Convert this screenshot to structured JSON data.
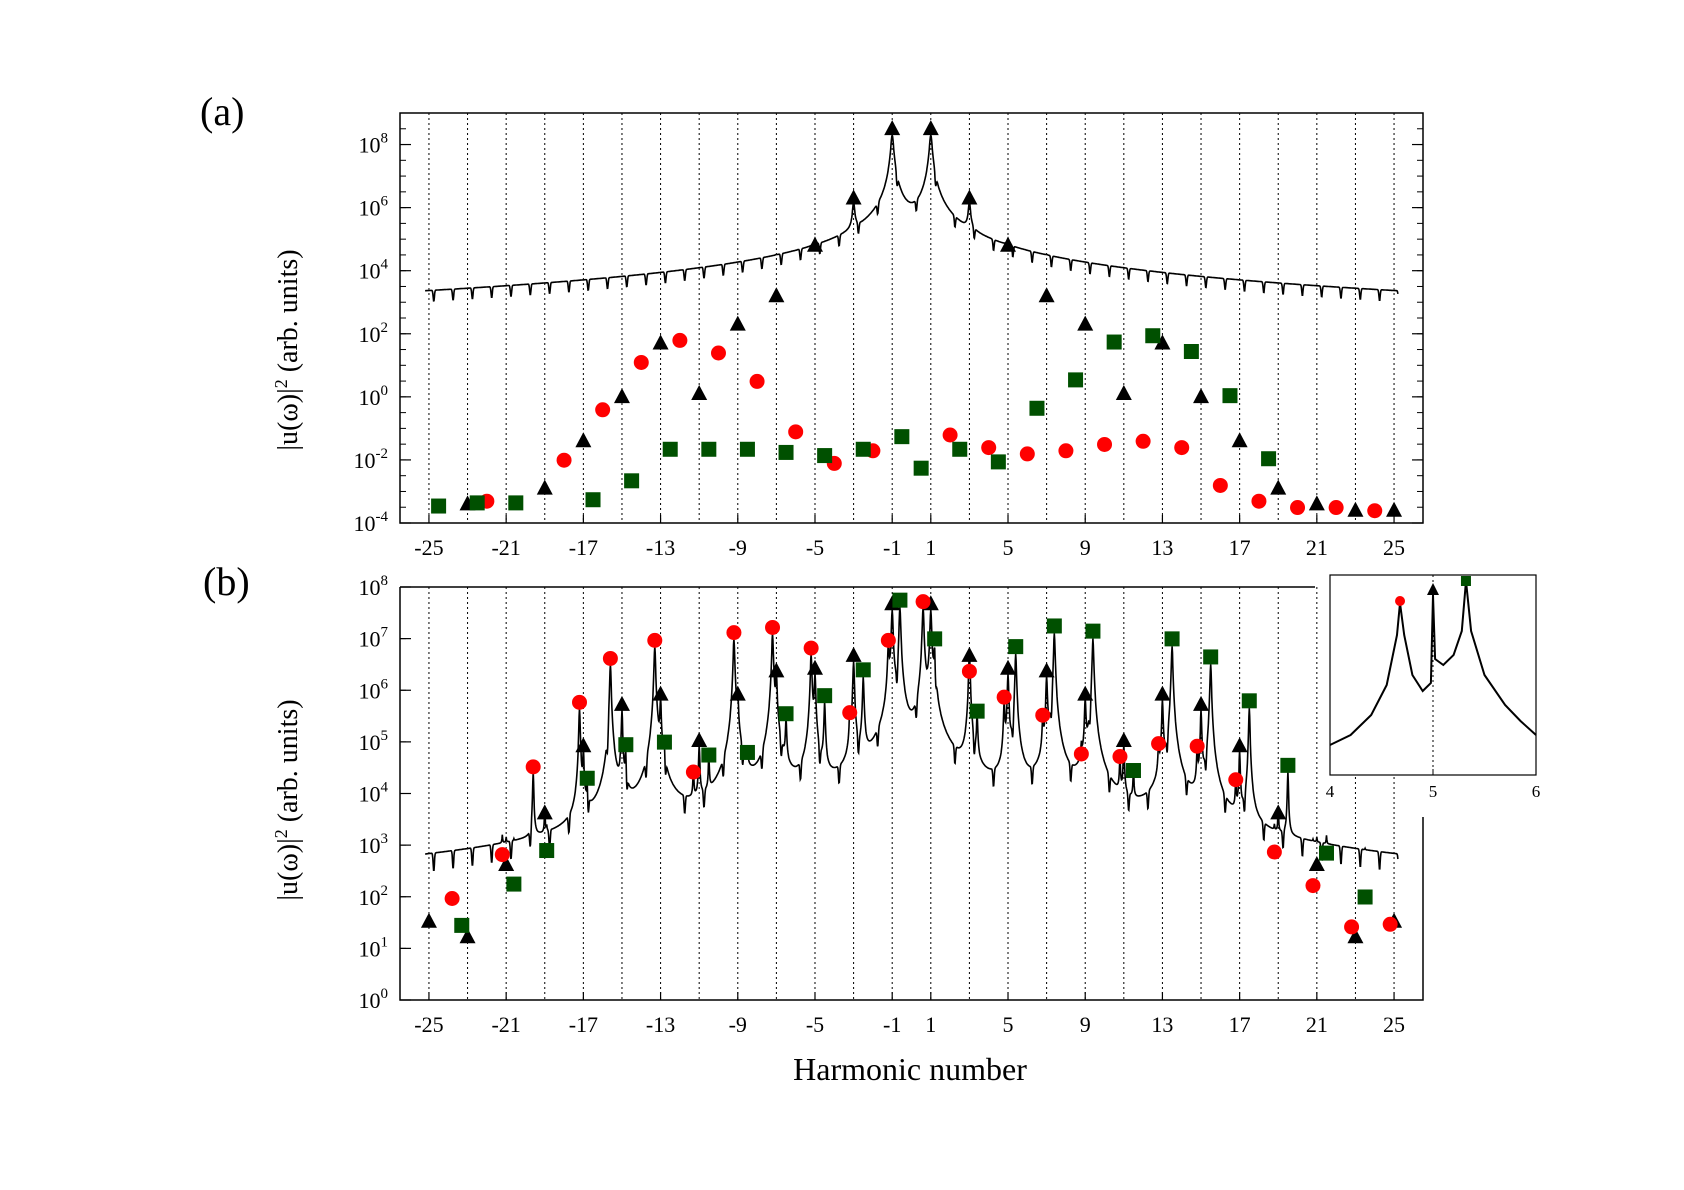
{
  "figure": {
    "panel_a_label": "(a)",
    "panel_b_label": "(b)",
    "xlabel": "Harmonic number",
    "ylabel_parts": [
      "|u(",
      "ω",
      ")|",
      "2",
      " (arb. units)"
    ]
  },
  "colors": {
    "triangle": "#000000",
    "circle": "#ff0000",
    "square": "#005000",
    "line": "#000000"
  },
  "chart_data": [
    {
      "type": "line",
      "panel": "(a)",
      "xlabel": "Harmonic number",
      "ylabel": "|u(ω)|^2 (arb. units)",
      "xlim": [
        -26.5,
        26.5
      ],
      "ylim_log10": [
        -4,
        9
      ],
      "xticks": [
        -25,
        -21,
        -17,
        -13,
        -9,
        -5,
        -1,
        1,
        5,
        9,
        13,
        17,
        21,
        25
      ],
      "xtick_labels": [
        "-25",
        "-21",
        "-17",
        "-13",
        "-9",
        "-5",
        "-1",
        "1",
        "5",
        "9",
        "13",
        "17",
        "21",
        "25"
      ],
      "ytick_labels": [
        {
          "exp": -4,
          "base": "10",
          "sup": "-4"
        },
        {
          "exp": -2,
          "base": "10",
          "sup": "-2"
        },
        {
          "exp": 0,
          "base": "10",
          "sup": "0"
        },
        {
          "exp": 2,
          "base": "10",
          "sup": "2"
        },
        {
          "exp": 4,
          "base": "10",
          "sup": "4"
        },
        {
          "exp": 6,
          "base": "10",
          "sup": "6"
        },
        {
          "exp": 8,
          "base": "10",
          "sup": "8"
        }
      ],
      "grid": "vertical dotted at odd harmonics",
      "baseline_log10": -3.8,
      "series": [
        {
          "name": "triangles",
          "marker": "triangle",
          "points": [
            [
              -23,
              -3.6
            ],
            [
              -19,
              -3.1
            ],
            [
              -17,
              -1.6
            ],
            [
              -15,
              -0.2
            ],
            [
              -13,
              1.5
            ],
            [
              -11,
              -0.1
            ],
            [
              -9,
              2.1
            ],
            [
              -7,
              3.0
            ],
            [
              -5,
              4.6
            ],
            [
              -3,
              6.1
            ],
            [
              -1,
              8.3
            ],
            [
              1,
              8.3
            ],
            [
              3,
              6.1
            ],
            [
              5,
              4.6
            ],
            [
              7,
              3.0
            ],
            [
              9,
              2.1
            ],
            [
              11,
              -0.1
            ],
            [
              13,
              1.5
            ],
            [
              15,
              -0.2
            ],
            [
              17,
              -1.6
            ],
            [
              19,
              -3.1
            ],
            [
              21,
              -3.6
            ],
            [
              23,
              -3.8
            ],
            [
              25,
              -3.8
            ]
          ]
        },
        {
          "name": "circles",
          "marker": "circle",
          "points": [
            [
              -22,
              -3.5
            ],
            [
              -18,
              -2.2
            ],
            [
              -16,
              -0.6
            ],
            [
              -14,
              0.9
            ],
            [
              -12,
              1.6
            ],
            [
              -10,
              1.2
            ],
            [
              -8,
              0.3
            ],
            [
              -6,
              -1.3
            ],
            [
              -4,
              -2.3
            ],
            [
              -2,
              -1.9
            ],
            [
              2,
              -1.4
            ],
            [
              4,
              -1.8
            ],
            [
              6,
              -2.0
            ],
            [
              8,
              -1.9
            ],
            [
              10,
              -1.7
            ],
            [
              12,
              -1.6
            ],
            [
              14,
              -1.8
            ],
            [
              16,
              -3.0
            ],
            [
              18,
              -3.5
            ],
            [
              20,
              -3.7
            ],
            [
              22,
              -3.7
            ],
            [
              24,
              -3.8
            ]
          ]
        },
        {
          "name": "squares",
          "marker": "square",
          "points": [
            [
              -24.5,
              -3.7
            ],
            [
              -22.5,
              -3.6
            ],
            [
              -20.5,
              -3.6
            ],
            [
              -16.5,
              -3.5
            ],
            [
              -14.5,
              -2.9
            ],
            [
              -12.5,
              -1.9
            ],
            [
              -10.5,
              -1.9
            ],
            [
              -8.5,
              -1.9
            ],
            [
              -6.5,
              -2.0
            ],
            [
              -4.5,
              -2.1
            ],
            [
              -2.5,
              -1.9
            ],
            [
              -0.5,
              -1.5
            ],
            [
              0.5,
              -2.5
            ],
            [
              2.5,
              -1.9
            ],
            [
              4.5,
              -2.3
            ],
            [
              6.5,
              -0.6
            ],
            [
              8.5,
              0.3
            ],
            [
              10.5,
              1.5
            ],
            [
              12.5,
              1.7
            ],
            [
              14.5,
              1.2
            ],
            [
              16.5,
              -0.2
            ],
            [
              18.5,
              -2.2
            ]
          ]
        }
      ]
    },
    {
      "type": "line",
      "panel": "(b)",
      "xlabel": "Harmonic number",
      "ylabel": "|u(ω)|^2 (arb. units)",
      "xlim": [
        -26.5,
        26.5
      ],
      "ylim_log10": [
        0,
        8
      ],
      "xticks": [
        -25,
        -21,
        -17,
        -13,
        -9,
        -5,
        -1,
        1,
        5,
        9,
        13,
        17,
        21,
        25
      ],
      "xtick_labels": [
        "-25",
        "-21",
        "-17",
        "-13",
        "-9",
        "-5",
        "-1",
        "1",
        "5",
        "9",
        "13",
        "17",
        "21",
        "25"
      ],
      "ytick_labels": [
        {
          "exp": 0,
          "base": "10",
          "sup": "0"
        },
        {
          "exp": 1,
          "base": "10",
          "sup": "1"
        },
        {
          "exp": 2,
          "base": "10",
          "sup": "2"
        },
        {
          "exp": 3,
          "base": "10",
          "sup": "3"
        },
        {
          "exp": 4,
          "base": "10",
          "sup": "4"
        },
        {
          "exp": 5,
          "base": "10",
          "sup": "5"
        },
        {
          "exp": 6,
          "base": "10",
          "sup": "6"
        },
        {
          "exp": 7,
          "base": "10",
          "sup": "7"
        },
        {
          "exp": 8,
          "base": "10",
          "sup": "8"
        }
      ],
      "grid": "vertical dotted at odd harmonics",
      "baseline_log10": 1.3,
      "series": [
        {
          "name": "triangles",
          "marker": "triangle",
          "points": [
            [
              -25,
              1.4
            ],
            [
              -23,
              1.1
            ],
            [
              -21,
              2.5
            ],
            [
              -19,
              3.5
            ],
            [
              -17,
              4.8
            ],
            [
              -15,
              5.6
            ],
            [
              -13,
              5.8
            ],
            [
              -11,
              4.9
            ],
            [
              -9,
              5.8
            ],
            [
              -7,
              6.25
            ],
            [
              -5,
              6.3
            ],
            [
              -3,
              6.55
            ],
            [
              -1,
              7.55
            ],
            [
              1,
              7.55
            ],
            [
              3,
              6.55
            ],
            [
              5,
              6.3
            ],
            [
              7,
              6.25
            ],
            [
              9,
              5.8
            ],
            [
              11,
              4.9
            ],
            [
              13,
              5.8
            ],
            [
              15,
              5.6
            ],
            [
              17,
              4.8
            ],
            [
              19,
              3.5
            ],
            [
              21,
              2.5
            ],
            [
              23,
              1.1
            ],
            [
              25,
              1.4
            ]
          ]
        },
        {
          "name": "circles",
          "marker": "circle",
          "points": [
            [
              -23.8,
              1.85
            ],
            [
              -21.2,
              2.7
            ],
            [
              -19.6,
              4.4
            ],
            [
              -17.2,
              5.65
            ],
            [
              -15.6,
              6.5
            ],
            [
              -13.3,
              6.85
            ],
            [
              -11.3,
              4.3
            ],
            [
              -9.2,
              7.0
            ],
            [
              -7.2,
              7.1
            ],
            [
              -5.2,
              6.7
            ],
            [
              -3.2,
              5.45
            ],
            [
              -1.2,
              6.85
            ],
            [
              0.6,
              7.6
            ],
            [
              3.0,
              6.25
            ],
            [
              4.8,
              5.75
            ],
            [
              6.8,
              5.4
            ],
            [
              8.8,
              4.65
            ],
            [
              10.8,
              4.6
            ],
            [
              12.8,
              4.85
            ],
            [
              14.8,
              4.8
            ],
            [
              16.8,
              4.15
            ],
            [
              18.8,
              2.75
            ],
            [
              20.8,
              2.1
            ],
            [
              22.8,
              1.3
            ],
            [
              24.8,
              1.35
            ]
          ]
        },
        {
          "name": "squares",
          "marker": "square",
          "points": [
            [
              -23.3,
              1.3
            ],
            [
              -20.6,
              2.1
            ],
            [
              -18.9,
              2.75
            ],
            [
              -16.8,
              4.15
            ],
            [
              -14.8,
              4.8
            ],
            [
              -12.8,
              4.85
            ],
            [
              -10.5,
              4.6
            ],
            [
              -8.5,
              4.65
            ],
            [
              -6.5,
              5.4
            ],
            [
              -4.5,
              5.75
            ],
            [
              -2.5,
              6.25
            ],
            [
              -0.6,
              7.6
            ],
            [
              1.2,
              6.85
            ],
            [
              3.4,
              5.45
            ],
            [
              5.4,
              6.7
            ],
            [
              7.4,
              7.1
            ],
            [
              9.4,
              7.0
            ],
            [
              11.5,
              4.3
            ],
            [
              13.5,
              6.85
            ],
            [
              15.5,
              6.5
            ],
            [
              17.5,
              5.65
            ],
            [
              19.5,
              4.4
            ],
            [
              21.5,
              2.7
            ],
            [
              23.5,
              1.85
            ]
          ]
        }
      ]
    },
    {
      "type": "line",
      "panel": "(b) inset",
      "xlim": [
        4,
        6
      ],
      "xtick_labels": [
        "4",
        "5",
        "6"
      ],
      "curve": [
        [
          4.0,
          0.15
        ],
        [
          4.2,
          0.2
        ],
        [
          4.4,
          0.3
        ],
        [
          4.55,
          0.45
        ],
        [
          4.65,
          0.7
        ],
        [
          4.68,
          0.86
        ],
        [
          4.72,
          0.7
        ],
        [
          4.8,
          0.5
        ],
        [
          4.9,
          0.42
        ],
        [
          4.98,
          0.46
        ],
        [
          5.0,
          0.9
        ],
        [
          5.02,
          0.58
        ],
        [
          5.1,
          0.55
        ],
        [
          5.2,
          0.6
        ],
        [
          5.28,
          0.72
        ],
        [
          5.32,
          0.97
        ],
        [
          5.37,
          0.72
        ],
        [
          5.5,
          0.5
        ],
        [
          5.7,
          0.35
        ],
        [
          5.85,
          0.27
        ],
        [
          6.0,
          0.2
        ]
      ],
      "markers": [
        {
          "marker": "circle",
          "x": 4.68,
          "y": 0.86
        },
        {
          "marker": "triangle",
          "x": 5.0,
          "y": 0.9
        },
        {
          "marker": "square",
          "x": 5.32,
          "y": 0.97
        }
      ]
    }
  ]
}
